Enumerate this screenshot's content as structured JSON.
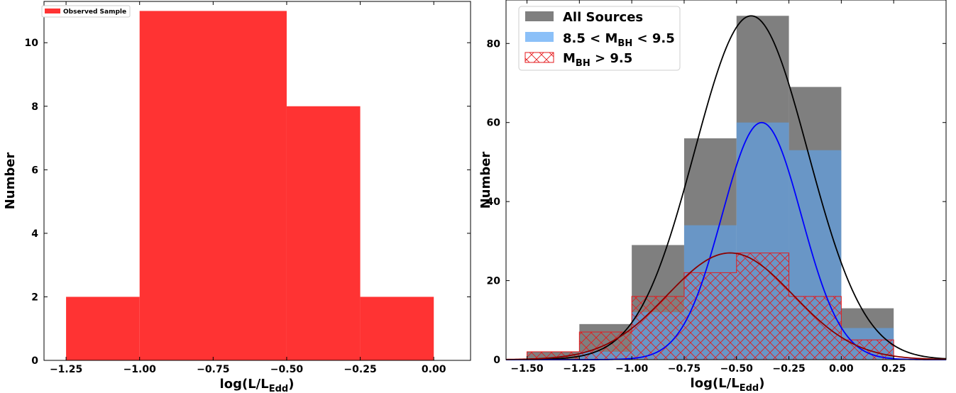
{
  "chart_data": [
    {
      "type": "bar",
      "xlabel": "log(L/L",
      "xlabel_sub": "Edd",
      "xlabel_tail": ")",
      "ylabel": "Number",
      "xlim": [
        -1.325,
        0.125
      ],
      "ylim": [
        0,
        11.3
      ],
      "xticks": [
        -1.25,
        -1.0,
        -0.75,
        -0.5,
        -0.25,
        0.0
      ],
      "xtick_labels": [
        "−1.25",
        "−1.00",
        "−0.75",
        "−0.50",
        "−0.25",
        "0.00"
      ],
      "yticks": [
        0,
        2,
        4,
        6,
        8,
        10
      ],
      "ytick_labels": [
        "0",
        "2",
        "4",
        "6",
        "8",
        "10"
      ],
      "legend_position": "top-left",
      "series": [
        {
          "name": "Observed Sample",
          "color": "#ff3333",
          "bins": [
            {
              "x0": -1.25,
              "x1": -1.0,
              "value": 2
            },
            {
              "x0": -1.0,
              "x1": -0.5,
              "value": 11
            },
            {
              "x0": -0.5,
              "x1": -0.25,
              "value": 8
            },
            {
              "x0": -0.25,
              "x1": 0.0,
              "value": 2
            }
          ]
        }
      ]
    },
    {
      "type": "bar",
      "xlabel": "log(L/L",
      "xlabel_sub": "Edd",
      "xlabel_tail": ")",
      "ylabel": "Number",
      "xlim": [
        -1.6,
        0.5
      ],
      "ylim": [
        0,
        91
      ],
      "xticks": [
        -1.5,
        -1.25,
        -1.0,
        -0.75,
        -0.5,
        -0.25,
        0.0,
        0.25
      ],
      "xtick_labels": [
        "−1.50",
        "−1.25",
        "−1.00",
        "−0.75",
        "−0.50",
        "−0.25",
        "0.00",
        "0.25"
      ],
      "yticks": [
        0,
        20,
        40,
        60,
        80
      ],
      "ytick_labels": [
        "0",
        "20",
        "40",
        "60",
        "80"
      ],
      "legend_position": "top-left",
      "series": [
        {
          "name": "All Sources",
          "color": "#7f7f7f",
          "bins": [
            {
              "x0": -1.5,
              "x1": -1.25,
              "value": 2
            },
            {
              "x0": -1.25,
              "x1": -1.0,
              "value": 9
            },
            {
              "x0": -1.0,
              "x1": -0.75,
              "value": 29
            },
            {
              "x0": -0.75,
              "x1": -0.5,
              "value": 56
            },
            {
              "x0": -0.5,
              "x1": -0.25,
              "value": 87
            },
            {
              "x0": -0.25,
              "x1": 0.0,
              "value": 69
            },
            {
              "x0": 0.0,
              "x1": 0.25,
              "value": 13
            }
          ]
        },
        {
          "name_prefix": "8.5 < M",
          "name_sub": "BH",
          "name_suffix": " < 9.5",
          "color": "#5aa5f5",
          "alpha": 0.6,
          "bins": [
            {
              "x0": -1.5,
              "x1": -1.25,
              "value": 0
            },
            {
              "x0": -1.25,
              "x1": -1.0,
              "value": 2
            },
            {
              "x0": -1.0,
              "x1": -0.75,
              "value": 12
            },
            {
              "x0": -0.75,
              "x1": -0.5,
              "value": 34
            },
            {
              "x0": -0.5,
              "x1": -0.25,
              "value": 60
            },
            {
              "x0": -0.25,
              "x1": 0.0,
              "value": 53
            },
            {
              "x0": 0.0,
              "x1": 0.25,
              "value": 8
            }
          ]
        },
        {
          "name_prefix": "M",
          "name_sub": "BH",
          "name_suffix": " > 9.5",
          "color": "#e41a1c",
          "hatch": "cross",
          "bins": [
            {
              "x0": -1.5,
              "x1": -1.25,
              "value": 2
            },
            {
              "x0": -1.25,
              "x1": -1.0,
              "value": 7
            },
            {
              "x0": -1.0,
              "x1": -0.75,
              "value": 16
            },
            {
              "x0": -0.75,
              "x1": -0.5,
              "value": 22
            },
            {
              "x0": -0.5,
              "x1": -0.25,
              "value": 27
            },
            {
              "x0": -0.25,
              "x1": 0.0,
              "value": 16
            },
            {
              "x0": 0.0,
              "x1": 0.25,
              "value": 5
            }
          ]
        }
      ],
      "fit_curves": [
        {
          "color": "#000000",
          "amplitude": 87,
          "mean": -0.43,
          "sigma": 0.27
        },
        {
          "color": "#0000ff",
          "amplitude": 60,
          "mean": -0.38,
          "sigma": 0.19
        },
        {
          "color": "#8b0000",
          "amplitude": 27,
          "mean": -0.53,
          "sigma": 0.3
        }
      ]
    }
  ]
}
